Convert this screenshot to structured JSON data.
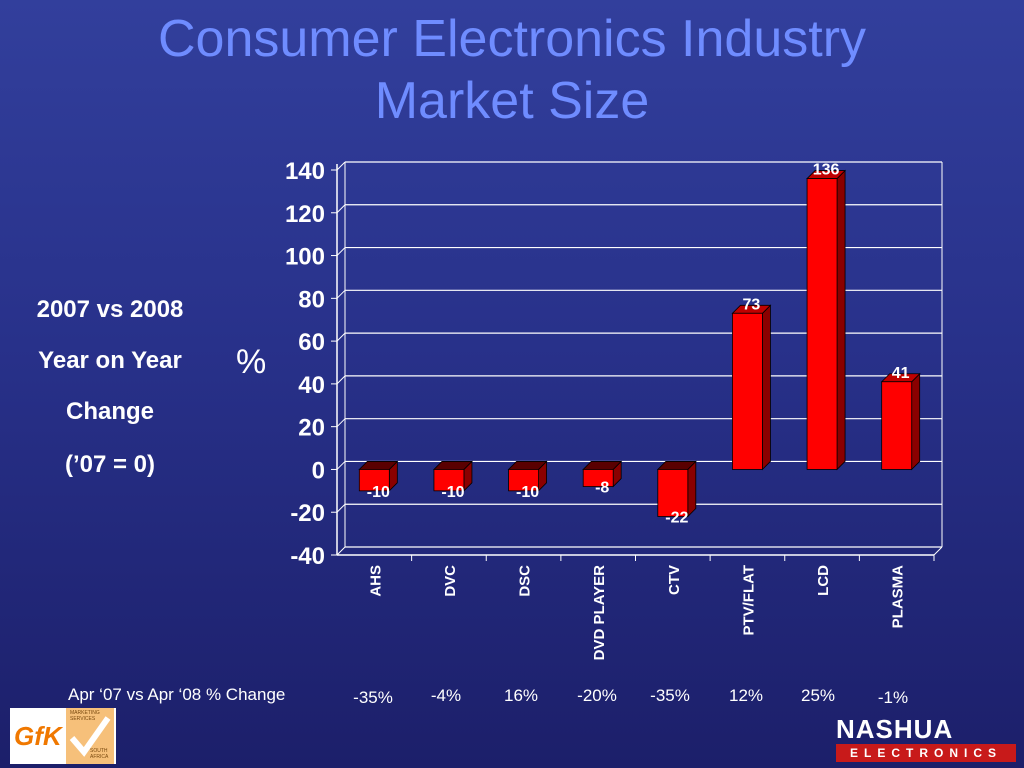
{
  "title_line1": "Consumer Electronics Industry",
  "title_line2": "Market Size",
  "side_labels": [
    "2007 vs 2008",
    "Year on Year",
    "Change",
    "(’07 = 0)"
  ],
  "percent_symbol": "%",
  "footer": {
    "label": "Apr ‘07 vs Apr ‘08 % Change",
    "values": [
      "-35%",
      "-4%",
      "16%",
      "-20%",
      "-35%",
      "12%",
      "25%",
      "-1%"
    ]
  },
  "logos": {
    "gfk": "GfK",
    "gfk_small_top": [
      "MARKETING",
      "SERVICES"
    ],
    "gfk_small_bottom": [
      "SOUTH",
      "AFRICA"
    ],
    "nashua_top": "NASHUA",
    "nashua_bottom": "ELECTRONICS"
  },
  "chart_data": {
    "type": "bar",
    "categories": [
      "AHS",
      "DVC",
      "DSC",
      "DVD PLAYER",
      "CTV",
      "PTV/FLAT",
      "LCD",
      "PLASMA"
    ],
    "values": [
      -10,
      -10,
      -10,
      -8,
      -22,
      73,
      136,
      41
    ],
    "data_labels": [
      "-10",
      "-10",
      "-10",
      "-8",
      "-22",
      "73",
      "136",
      "41"
    ],
    "yticks": [
      "140",
      "120",
      "100",
      "80",
      "60",
      "40",
      "20",
      "0",
      "-20",
      "-40"
    ],
    "ylim": [
      -40,
      140
    ],
    "grid": true,
    "bar_color": "#ff0000",
    "bar_side_color": "#8a0000"
  }
}
